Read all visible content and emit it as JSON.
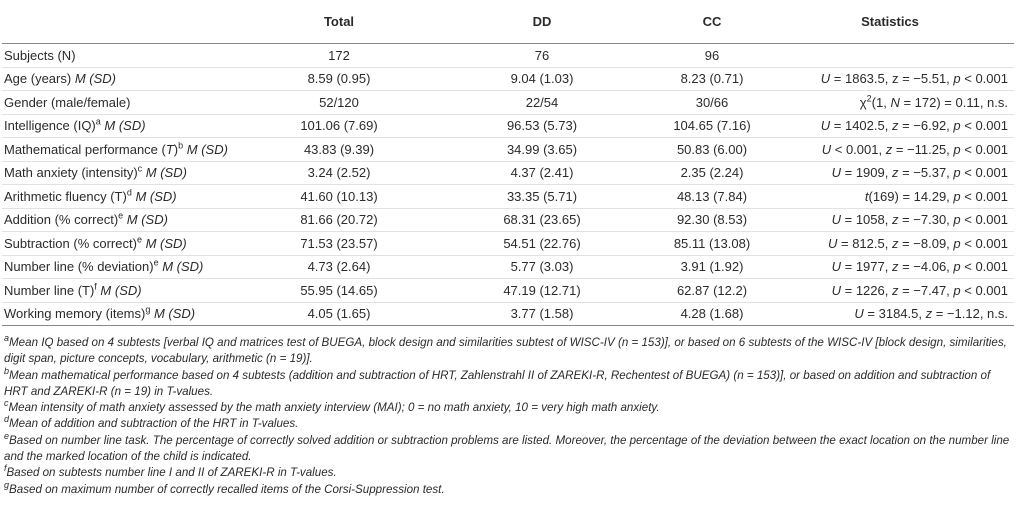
{
  "table": {
    "columns": [
      "Total",
      "DD",
      "CC",
      "Statistics"
    ],
    "rows": [
      {
        "label": [
          "Subjects (N)"
        ],
        "cells": [
          "172",
          "76",
          "96"
        ],
        "stats": []
      },
      {
        "label": [
          "Age (years) ",
          {
            "i": "M (SD)"
          }
        ],
        "cells": [
          "8.59 (0.95)",
          "9.04 (1.03)",
          "8.23 (0.71)"
        ],
        "stats": [
          {
            "i": "U"
          },
          " = 1863.5, z = −5.51, ",
          {
            "i": "p"
          },
          " < 0.001"
        ]
      },
      {
        "label": [
          "Gender (male/female)"
        ],
        "cells": [
          "52/120",
          "22/54",
          "30/66"
        ],
        "stats": [
          "χ",
          {
            "sup": "2"
          },
          "(1, ",
          {
            "i": "N"
          },
          " = 172) = 0.11, n.s."
        ]
      },
      {
        "label": [
          "Intelligence (IQ)",
          {
            "sup": "a"
          },
          {
            "i": " M (SD)"
          }
        ],
        "cells": [
          "101.06 (7.69)",
          "96.53 (5.73)",
          "104.65 (7.16)"
        ],
        "stats": [
          {
            "i": "U"
          },
          " = 1402.5, ",
          {
            "i": "z"
          },
          " = −6.92, ",
          {
            "i": "p"
          },
          " < 0.001"
        ]
      },
      {
        "label": [
          "Mathematical performance (",
          {
            "i": "T"
          },
          ")",
          {
            "sup": "b"
          },
          {
            "i": " M (SD)"
          }
        ],
        "cells": [
          "43.83 (9.39)",
          "34.99 (3.65)",
          "50.83 (6.00)"
        ],
        "stats": [
          {
            "i": "U"
          },
          " < 0.001, ",
          {
            "i": "z"
          },
          " = −11.25, ",
          {
            "i": "p"
          },
          " < 0.001"
        ]
      },
      {
        "label": [
          "Math anxiety (intensity)",
          {
            "sup": "c"
          },
          {
            "i": " M (SD)"
          }
        ],
        "cells": [
          "3.24 (2.52)",
          "4.37 (2.41)",
          "2.35 (2.24)"
        ],
        "stats": [
          {
            "i": "U"
          },
          " = 1909, ",
          {
            "i": "z"
          },
          " = −5.37, ",
          {
            "i": "p"
          },
          " < 0.001"
        ]
      },
      {
        "label": [
          "Arithmetic fluency (T)",
          {
            "sup": "d"
          },
          {
            "i": " M (SD)"
          }
        ],
        "cells": [
          "41.60 (10.13)",
          "33.35 (5.71)",
          "48.13 (7.84)"
        ],
        "stats": [
          {
            "i": "t"
          },
          "(169) = 14.29, ",
          {
            "i": "p"
          },
          " < 0.001"
        ]
      },
      {
        "label": [
          "Addition (% correct)",
          {
            "sup": "e"
          },
          {
            "i": " M (SD)"
          }
        ],
        "cells": [
          "81.66 (20.72)",
          "68.31 (23.65)",
          "92.30 (8.53)"
        ],
        "stats": [
          {
            "i": "U"
          },
          " = 1058, ",
          {
            "i": "z"
          },
          " = −7.30, ",
          {
            "i": "p"
          },
          " < 0.001"
        ]
      },
      {
        "label": [
          "Subtraction (% correct)",
          {
            "sup": "e"
          },
          {
            "i": " M (SD)"
          }
        ],
        "cells": [
          "71.53 (23.57)",
          "54.51 (22.76)",
          "85.11 (13.08)"
        ],
        "stats": [
          {
            "i": "U"
          },
          " = 812.5, ",
          {
            "i": "z"
          },
          " = −8.09, ",
          {
            "i": "p"
          },
          " < 0.001"
        ]
      },
      {
        "label": [
          "Number line (% deviation)",
          {
            "sup": "e"
          },
          {
            "i": " M (SD)"
          }
        ],
        "cells": [
          "4.73 (2.64)",
          "5.77 (3.03)",
          "3.91 (1.92)"
        ],
        "stats": [
          {
            "i": "U"
          },
          " = 1977, ",
          {
            "i": "z"
          },
          " = −4.06, ",
          {
            "i": "p"
          },
          " < 0.001"
        ]
      },
      {
        "label": [
          "Number line (T)",
          {
            "sup": "f"
          },
          {
            "i": " M (SD)"
          }
        ],
        "cells": [
          "55.95 (14.65)",
          "47.19 (12.71)",
          "62.87 (12.2)"
        ],
        "stats": [
          {
            "i": "U"
          },
          " = 1226, ",
          {
            "i": "z"
          },
          " = −7.47, ",
          {
            "i": "p"
          },
          " < 0.001"
        ]
      },
      {
        "label": [
          "Working memory (items)",
          {
            "sup": "g"
          },
          {
            "i": " M (SD)"
          }
        ],
        "cells": [
          "4.05 (1.65)",
          "3.77 (1.58)",
          "4.28 (1.68)"
        ],
        "stats": [
          {
            "i": "U"
          },
          " = 3184.5, ",
          {
            "i": "z"
          },
          " = −1.12, n.s."
        ]
      }
    ],
    "footnotes": [
      {
        "mark": "a",
        "text": "Mean IQ based on 4 subtests [verbal IQ and matrices test of BUEGA, block design and similarities subtest of WISC-IV (n = 153)], or based on 6 subtests of the WISC-IV [block design, similarities, digit span, picture concepts, vocabulary, arithmetic (n = 19)]."
      },
      {
        "mark": "b",
        "text": "Mean mathematical performance based on 4 subtests (addition and subtraction of HRT, Zahlenstrahl II of ZAREKI-R, Rechentest of BUEGA) (n = 153)], or based on addition and subtraction of HRT and ZAREKI-R (n = 19) in T-values."
      },
      {
        "mark": "c",
        "text": "Mean intensity of math anxiety assessed by the math anxiety interview (MAI); 0 = no math anxiety, 10 = very high math anxiety."
      },
      {
        "mark": "d",
        "text": "Mean of addition and subtraction of the HRT in T-values."
      },
      {
        "mark": "e",
        "text": "Based on number line task. The percentage of correctly solved addition or subtraction problems are listed. Moreover, the percentage of the deviation between the exact location on the number line and the marked location of the child is indicated."
      },
      {
        "mark": "f",
        "text": "Based on subtests number line I and II of ZAREKI-R in T-values."
      },
      {
        "mark": "g",
        "text": "Based on maximum number of correctly recalled items of the Corsi-Suppression test."
      }
    ]
  }
}
